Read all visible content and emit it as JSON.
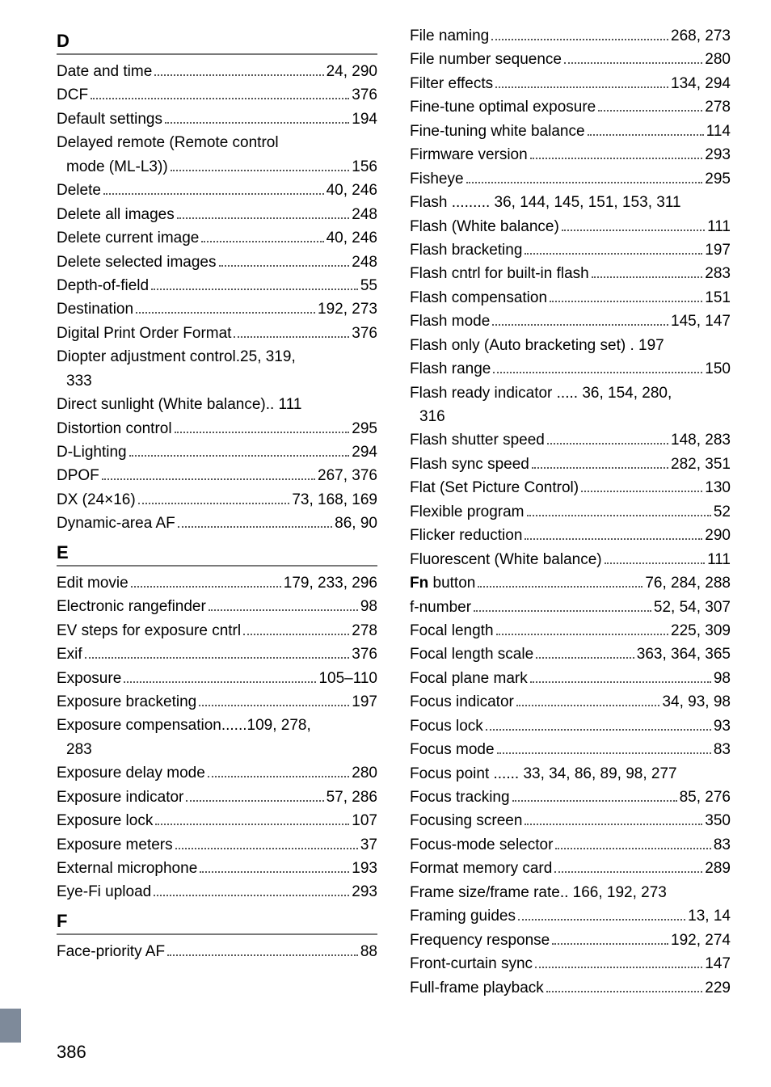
{
  "page_number": "386",
  "letters": {
    "D": "D",
    "E": "E",
    "F": "F"
  },
  "left": {
    "D": [
      {
        "term": "Date and time",
        "pages": "24, 290"
      },
      {
        "term": "DCF",
        "pages": "376"
      },
      {
        "term": "Default settings",
        "pages": "194"
      },
      {
        "term": "Delayed remote (Remote control",
        "pages": ""
      },
      {
        "term": "mode (ML-L3))",
        "pages": "156",
        "indent": true
      },
      {
        "term": "Delete",
        "pages": "40, 246"
      },
      {
        "term": "Delete all images",
        "pages": "248"
      },
      {
        "term": "Delete current image",
        "pages": "40, 246"
      },
      {
        "term": "Delete selected images",
        "pages": "248"
      },
      {
        "term": "Depth-of-field",
        "pages": "55"
      },
      {
        "term": "Destination",
        "pages": "192, 273"
      },
      {
        "term": "Digital Print Order Format",
        "pages": "376"
      },
      {
        "term": "Diopter adjustment control.25, 319,",
        "pages": "",
        "nodots": true
      },
      {
        "term": "333",
        "pages": "",
        "indent": true,
        "nodots": true
      },
      {
        "term": "Direct sunlight (White balance).. 111",
        "pages": "",
        "nodots": true
      },
      {
        "term": "Distortion control",
        "pages": "295"
      },
      {
        "term": "D-Lighting",
        "pages": "294"
      },
      {
        "term": "DPOF",
        "pages": "267, 376"
      },
      {
        "term": "DX (24×16)",
        "pages": "73, 168, 169"
      },
      {
        "term": "Dynamic-area AF",
        "pages": "86, 90"
      }
    ],
    "E": [
      {
        "term": "Edit movie",
        "pages": "179, 233, 296"
      },
      {
        "term": "Electronic rangefinder",
        "pages": "98"
      },
      {
        "term": "EV steps for exposure cntrl",
        "pages": "278"
      },
      {
        "term": "Exif",
        "pages": "376"
      },
      {
        "term": "Exposure",
        "pages": "105–110"
      },
      {
        "term": "Exposure bracketing",
        "pages": "197"
      },
      {
        "term": "Exposure compensation......109, 278,",
        "pages": "",
        "nodots": true
      },
      {
        "term": "283",
        "pages": "",
        "indent": true,
        "nodots": true
      },
      {
        "term": "Exposure delay mode",
        "pages": "280"
      },
      {
        "term": "Exposure indicator",
        "pages": "57, 286"
      },
      {
        "term": "Exposure lock",
        "pages": "107"
      },
      {
        "term": "Exposure meters",
        "pages": "37"
      },
      {
        "term": "External microphone",
        "pages": "193"
      },
      {
        "term": "Eye-Fi upload",
        "pages": "293"
      }
    ],
    "F": [
      {
        "term": "Face-priority AF",
        "pages": "88"
      }
    ]
  },
  "right": [
    {
      "term": "File naming",
      "pages": "268, 273"
    },
    {
      "term": "File number sequence",
      "pages": "280"
    },
    {
      "term": "Filter effects",
      "pages": "134, 294"
    },
    {
      "term": "Fine-tune optimal exposure",
      "pages": "278"
    },
    {
      "term": "Fine-tuning white balance",
      "pages": "114"
    },
    {
      "term": "Firmware version",
      "pages": "293"
    },
    {
      "term": "Fisheye",
      "pages": "295"
    },
    {
      "term": "Flash ......... 36, 144, 145, 151, 153, 311",
      "pages": "",
      "nodots": true
    },
    {
      "term": "Flash (White balance)",
      "pages": "111"
    },
    {
      "term": "Flash bracketing",
      "pages": "197"
    },
    {
      "term": "Flash cntrl for built-in flash",
      "pages": "283"
    },
    {
      "term": "Flash compensation",
      "pages": "151"
    },
    {
      "term": "Flash mode",
      "pages": "145, 147"
    },
    {
      "term": "Flash only (Auto bracketing set) . 197",
      "pages": "",
      "nodots": true
    },
    {
      "term": "Flash range",
      "pages": "150"
    },
    {
      "term": "Flash ready indicator ..... 36, 154, 280,",
      "pages": "",
      "nodots": true
    },
    {
      "term": "316",
      "pages": "",
      "indent": true,
      "nodots": true
    },
    {
      "term": "Flash shutter speed",
      "pages": "148, 283"
    },
    {
      "term": "Flash sync speed",
      "pages": "282, 351"
    },
    {
      "term": "Flat (Set Picture Control)",
      "pages": "130"
    },
    {
      "term": "Flexible program",
      "pages": "52"
    },
    {
      "term": "Flicker reduction",
      "pages": "290"
    },
    {
      "term": "Fluorescent (White balance)",
      "pages": "111"
    },
    {
      "term_html": "<span class='bold'>Fn</span> button",
      "pages": "76, 284, 288"
    },
    {
      "term": "f-number",
      "pages": "52, 54, 307"
    },
    {
      "term": "Focal length",
      "pages": "225, 309"
    },
    {
      "term": "Focal length scale",
      "pages": "363, 364, 365"
    },
    {
      "term": "Focal plane mark",
      "pages": "98"
    },
    {
      "term": "Focus indicator",
      "pages": "34, 93, 98"
    },
    {
      "term": "Focus lock",
      "pages": "93"
    },
    {
      "term": "Focus mode",
      "pages": "83"
    },
    {
      "term": "Focus point ...... 33, 34, 86, 89, 98, 277",
      "pages": "",
      "nodots": true
    },
    {
      "term": "Focus tracking",
      "pages": "85, 276"
    },
    {
      "term": "Focusing screen",
      "pages": "350"
    },
    {
      "term": "Focus-mode selector",
      "pages": "83"
    },
    {
      "term": "Format memory card",
      "pages": "289"
    },
    {
      "term": "Frame size/frame rate.. 166, 192, 273",
      "pages": "",
      "nodots": true
    },
    {
      "term": "Framing guides",
      "pages": "13, 14"
    },
    {
      "term": "Frequency response",
      "pages": "192, 274"
    },
    {
      "term": "Front-curtain sync",
      "pages": "147"
    },
    {
      "term": "Full-frame playback",
      "pages": "229"
    }
  ]
}
